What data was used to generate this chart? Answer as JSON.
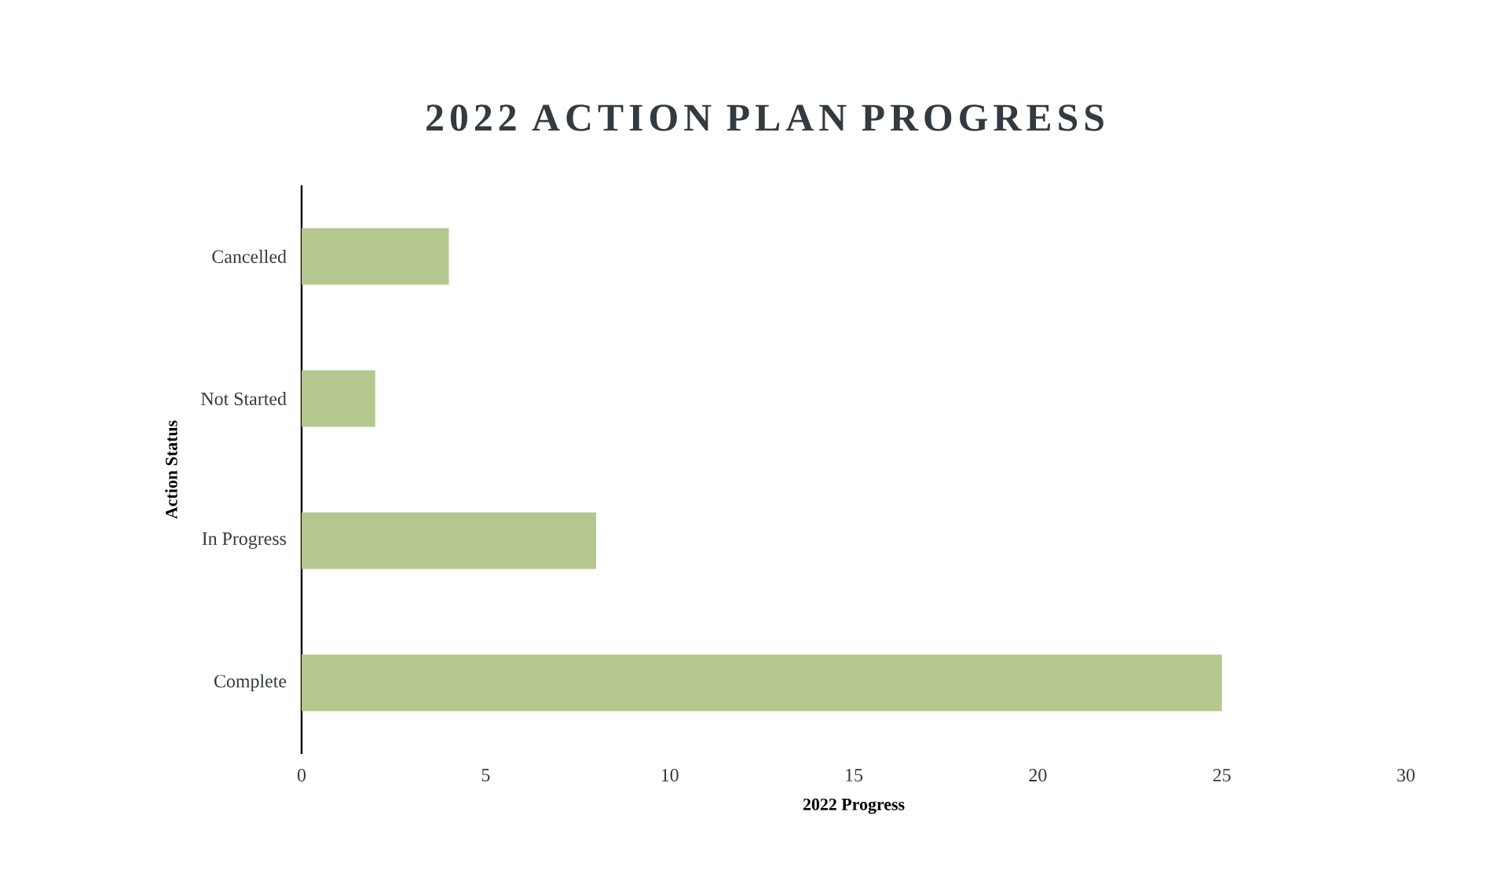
{
  "chart_data": {
    "type": "bar",
    "orientation": "horizontal",
    "title": "2022 ACTION PLAN PROGRESS",
    "xlabel": "2022 Progress",
    "ylabel": "Action Status",
    "categories": [
      "Cancelled",
      "Not Started",
      "In Progress",
      "Complete"
    ],
    "values": [
      4,
      2,
      8,
      25
    ],
    "color": "#b3c78f",
    "xlim": [
      0,
      30
    ],
    "xticks": [
      0,
      5,
      10,
      15,
      20,
      25,
      30
    ],
    "grid": false
  }
}
